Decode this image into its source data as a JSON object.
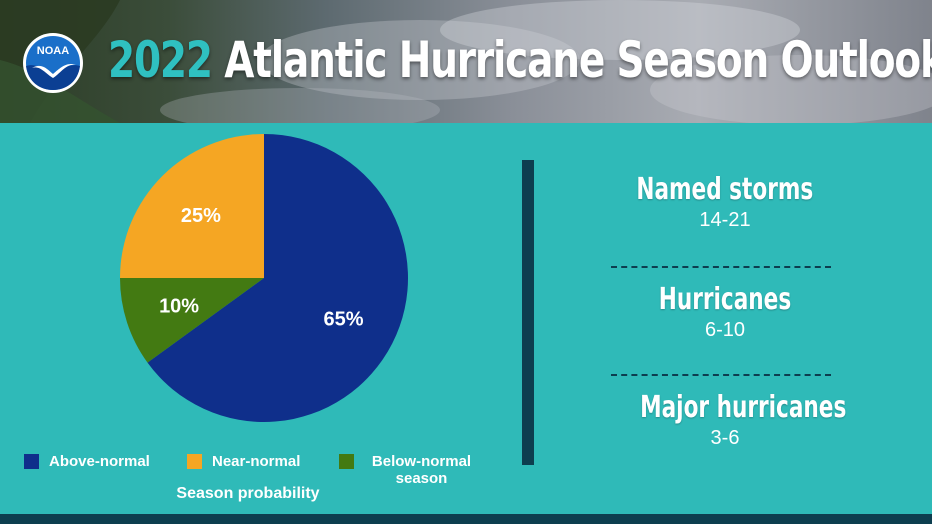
{
  "header": {
    "logo_text": "NOAA",
    "title_year": "2022",
    "title_rest": "Atlantic Hurricane Season Outlook"
  },
  "chart_data": {
    "type": "pie",
    "title": "Season probability",
    "slices": [
      {
        "name": "Above-normal",
        "value": 65,
        "label": "65%",
        "color": "#0f2f8b"
      },
      {
        "name": "Below-normal season",
        "value": 10,
        "label": "10%",
        "color": "#437a12"
      },
      {
        "name": "Near-normal",
        "value": 25,
        "label": "25%",
        "color": "#f5a623"
      }
    ],
    "legend": [
      {
        "label": "Above-normal",
        "color": "#0f2f8b"
      },
      {
        "label": "Near-normal",
        "color": "#f5a623"
      },
      {
        "label": "Below-normal season",
        "color": "#437a12"
      }
    ],
    "legend_placement": "bottom"
  },
  "stats": [
    {
      "label": "Named storms",
      "value": "14-21"
    },
    {
      "label": "Hurricanes",
      "value": "6-10"
    },
    {
      "label": "Major hurricanes",
      "value": "3-6"
    }
  ],
  "colors": {
    "background": "#2fbab8",
    "accent_dark": "#0d3e4f",
    "year_accent": "#2fc0c0"
  }
}
